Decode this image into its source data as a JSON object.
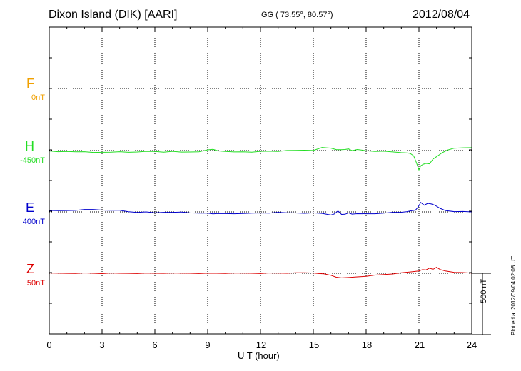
{
  "header": {
    "title": "Dixon Island (DIK)  [AARI]",
    "coords": "GG ( 73.55°,  80.57°)",
    "date": "2012/08/04"
  },
  "colors": {
    "F": "#f0a000",
    "H": "#22dd22",
    "E": "#0000cc",
    "Z": "#dd0000",
    "grid": "#000000"
  },
  "components": [
    {
      "name": "F",
      "baseline": "0nT"
    },
    {
      "name": "H",
      "baseline": "-450nT"
    },
    {
      "name": "E",
      "baseline": "400nT"
    },
    {
      "name": "Z",
      "baseline": "50nT"
    }
  ],
  "scale_bar": {
    "label": "500 nT",
    "value_nT": 500
  },
  "plotted_note": "Plotted at 2012/09/04 02:08 UT",
  "chart_data": {
    "type": "line",
    "xlabel": "U T (hour)",
    "xlim": [
      0,
      24
    ],
    "x_ticks": [
      "0",
      "3",
      "6",
      "9",
      "12",
      "15",
      "18",
      "21",
      "24"
    ],
    "y_unit": "nT",
    "series": [
      {
        "name": "H",
        "x": [
          0,
          0.5,
          1,
          1.5,
          2,
          2.5,
          3,
          3.5,
          4,
          4.5,
          5,
          5.5,
          6,
          6.5,
          7,
          7.5,
          8,
          8.5,
          9,
          9.3,
          9.6,
          10,
          10.5,
          11,
          11.5,
          12,
          12.5,
          13,
          13.5,
          14,
          14.5,
          15,
          15.5,
          16,
          16.3,
          16.6,
          16.8,
          17,
          17.2,
          17.5,
          18,
          18.5,
          19,
          19.5,
          20,
          20.3,
          20.5,
          20.7,
          20.85,
          21,
          21.1,
          21.25,
          21.4,
          21.6,
          21.8,
          22,
          22.3,
          22.6,
          23,
          23.5,
          24
        ],
        "y": [
          -456,
          -460,
          -456,
          -458,
          -461,
          -465,
          -462,
          -466,
          -460,
          -463,
          -459,
          -458,
          -457,
          -461,
          -459,
          -463,
          -461,
          -458,
          -446,
          -440,
          -451,
          -460,
          -462,
          -459,
          -460,
          -458,
          -455,
          -456,
          -452,
          -450,
          -446,
          -447,
          -426,
          -430,
          -440,
          -445,
          -442,
          -436,
          -448,
          -443,
          -451,
          -455,
          -458,
          -462,
          -466,
          -466,
          -475,
          -493,
          -545,
          -610,
          -575,
          -560,
          -552,
          -560,
          -520,
          -498,
          -472,
          -448,
          -430,
          -425,
          -428
        ]
      },
      {
        "name": "E",
        "x": [
          0,
          0.5,
          1,
          1.5,
          2,
          2.5,
          3,
          3.5,
          4,
          4.5,
          5,
          5.5,
          6,
          6.5,
          7,
          7.5,
          8,
          8.5,
          9,
          9.3,
          9.5,
          9.8,
          10,
          10.5,
          11,
          11.5,
          12,
          12.5,
          13,
          13.5,
          14,
          14.5,
          15,
          15.5,
          16,
          16.2,
          16.4,
          16.5,
          16.6,
          16.8,
          17,
          17.2,
          17.5,
          18,
          18.5,
          19,
          19.5,
          20,
          20.3,
          20.6,
          20.8,
          20.95,
          21.1,
          21.3,
          21.5,
          21.7,
          21.9,
          22.2,
          22.5,
          23,
          23.5,
          24
        ],
        "y": [
          409,
          409,
          412,
          415,
          418,
          420,
          416,
          411,
          412,
          402,
          398,
          398,
          393,
          398,
          394,
          398,
          393,
          392,
          388,
          384,
          388,
          384,
          385,
          386,
          390,
          388,
          391,
          392,
          394,
          392,
          392,
          391,
          390,
          388,
          376,
          381,
          406,
          396,
          382,
          379,
          392,
          384,
          383,
          384,
          386,
          392,
          395,
          397,
          403,
          408,
          413,
          440,
          480,
          453,
          470,
          466,
          452,
          428,
          412,
          405,
          402,
          400
        ]
      },
      {
        "name": "Z",
        "x": [
          0,
          0.5,
          1,
          1.5,
          2,
          2.5,
          3,
          3.5,
          4,
          4.5,
          5,
          5.5,
          6,
          6.5,
          7,
          7.5,
          8,
          8.5,
          9,
          9.5,
          10,
          10.5,
          11,
          11.5,
          12,
          12.5,
          13,
          13.5,
          14,
          14.5,
          15,
          15.3,
          15.6,
          16,
          16.3,
          16.6,
          17,
          17.5,
          18,
          18.5,
          19,
          19.5,
          20,
          20.5,
          21,
          21.2,
          21.4,
          21.6,
          21.8,
          22,
          22.2,
          22.5,
          23,
          23.5,
          24
        ],
        "y": [
          50,
          50,
          50,
          51,
          51,
          50,
          49,
          50,
          49,
          50,
          50,
          50,
          50,
          51,
          50,
          50,
          51,
          50,
          49,
          50,
          50,
          50,
          51,
          51,
          50,
          51,
          51,
          52,
          52,
          53,
          53,
          50,
          44,
          34,
          20,
          10,
          15,
          22,
          28,
          34,
          40,
          46,
          52,
          60,
          70,
          82,
          76,
          92,
          84,
          96,
          80,
          70,
          60,
          54,
          52
        ]
      }
    ]
  }
}
